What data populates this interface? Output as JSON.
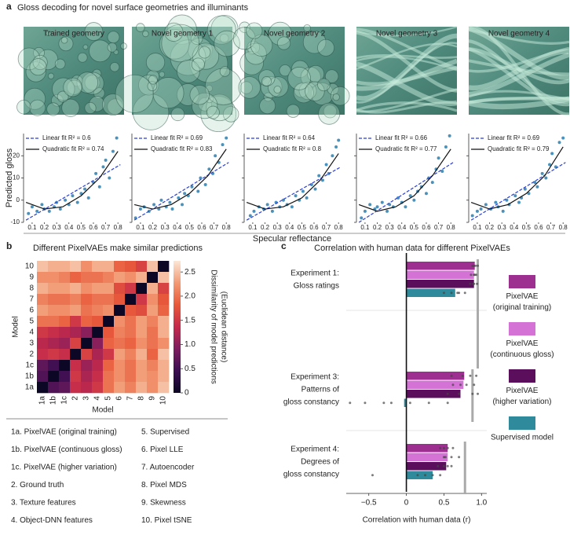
{
  "chart_data": [
    {
      "type": "scatter",
      "panel": "a",
      "title": "Gloss decoding for novel surface geometries and illuminants",
      "image_label": "Trained geometry",
      "ylabel": "Predicted gloss",
      "xlabel": "Specular reflectance",
      "ytick_labels": true,
      "xlim": [
        0.03,
        0.85
      ],
      "ylim": [
        -10,
        30
      ],
      "xticks": [
        0.1,
        0.2,
        0.3,
        0.4,
        0.5,
        0.6,
        0.7,
        0.8
      ],
      "yticks": [
        -10,
        0,
        10,
        20
      ],
      "color": "#2a7fb0",
      "x": [
        0.07,
        0.1,
        0.14,
        0.18,
        0.2,
        0.24,
        0.28,
        0.3,
        0.33,
        0.37,
        0.4,
        0.43,
        0.47,
        0.5,
        0.53,
        0.56,
        0.6,
        0.62,
        0.65,
        0.68,
        0.7,
        0.73,
        0.76,
        0.79
      ],
      "values": [
        -6,
        -3,
        -5,
        -2,
        -4,
        -5,
        -3,
        -1,
        -4,
        0,
        -2,
        2,
        -1,
        3,
        5,
        1,
        8,
        12,
        6,
        15,
        18,
        10,
        22,
        28
      ],
      "series": [
        {
          "name": "Linear fit R² = 0.6",
          "color": "#2a3fd6",
          "dashed": true,
          "x": [
            0.05,
            0.82
          ],
          "values": [
            -9,
            16
          ]
        },
        {
          "name": "Quadratic fit R² = 0.74",
          "color": "#111111",
          "dashed": false,
          "x": [
            0.05,
            0.2,
            0.35,
            0.5,
            0.65,
            0.8
          ],
          "values": [
            -1,
            -4,
            -3,
            2,
            10,
            22
          ]
        }
      ]
    },
    {
      "type": "scatter",
      "image_label": "Novel geometry 1",
      "ytick_labels": false,
      "xlim": [
        0.03,
        0.85
      ],
      "ylim": [
        -10,
        30
      ],
      "xticks": [
        0.1,
        0.2,
        0.3,
        0.4,
        0.5,
        0.6,
        0.7,
        0.8
      ],
      "yticks": [
        -10,
        0,
        10,
        20
      ],
      "color": "#2a7fb0",
      "x": [
        0.06,
        0.1,
        0.13,
        0.17,
        0.21,
        0.25,
        0.27,
        0.31,
        0.34,
        0.36,
        0.41,
        0.44,
        0.46,
        0.49,
        0.52,
        0.57,
        0.59,
        0.63,
        0.66,
        0.69,
        0.71,
        0.74,
        0.77,
        0.8
      ],
      "values": [
        -8,
        -4,
        -3,
        -5,
        -2,
        -4,
        0,
        -3,
        -1,
        -4,
        1,
        -2,
        3,
        2,
        6,
        4,
        10,
        7,
        14,
        12,
        20,
        17,
        25,
        28
      ],
      "series": [
        {
          "name": "Linear fit R² = 0.69",
          "color": "#2a3fd6",
          "dashed": true,
          "x": [
            0.05,
            0.82
          ],
          "values": [
            -9,
            17
          ]
        },
        {
          "name": "Quadratic fit R² = 0.83",
          "color": "#111111",
          "dashed": false,
          "x": [
            0.05,
            0.2,
            0.35,
            0.5,
            0.65,
            0.8
          ],
          "values": [
            -2,
            -4,
            -2,
            3,
            11,
            23
          ]
        }
      ]
    },
    {
      "type": "scatter",
      "image_label": "Novel geometry 2",
      "ytick_labels": false,
      "xlim": [
        0.03,
        0.85
      ],
      "ylim": [
        -10,
        30
      ],
      "xticks": [
        0.1,
        0.2,
        0.3,
        0.4,
        0.5,
        0.6,
        0.7,
        0.8
      ],
      "yticks": [
        -10,
        0,
        10,
        20
      ],
      "color": "#2a7fb0",
      "x": [
        0.08,
        0.11,
        0.15,
        0.19,
        0.22,
        0.26,
        0.29,
        0.32,
        0.35,
        0.38,
        0.42,
        0.45,
        0.48,
        0.51,
        0.54,
        0.58,
        0.61,
        0.64,
        0.67,
        0.7,
        0.72,
        0.75,
        0.78,
        0.8
      ],
      "values": [
        -7,
        -5,
        -3,
        -4,
        -2,
        -5,
        -1,
        -3,
        0,
        -2,
        -3,
        2,
        0,
        4,
        1,
        7,
        5,
        11,
        9,
        16,
        12,
        20,
        24,
        27
      ],
      "series": [
        {
          "name": "Linear fit R² = 0.64",
          "color": "#2a3fd6",
          "dashed": true,
          "x": [
            0.05,
            0.82
          ],
          "values": [
            -9,
            15
          ]
        },
        {
          "name": "Quadratic fit R² = 0.8",
          "color": "#111111",
          "dashed": false,
          "x": [
            0.05,
            0.2,
            0.35,
            0.5,
            0.65,
            0.8
          ],
          "values": [
            -1,
            -4,
            -3,
            1,
            9,
            21
          ]
        }
      ]
    },
    {
      "type": "scatter",
      "image_label": "Novel geometry 3",
      "ytick_labels": false,
      "xlim": [
        0.03,
        0.85
      ],
      "ylim": [
        -10,
        30
      ],
      "xticks": [
        0.1,
        0.2,
        0.3,
        0.4,
        0.5,
        0.6,
        0.7,
        0.8
      ],
      "yticks": [
        -10,
        0,
        10,
        20
      ],
      "color": "#2a7fb0",
      "x": [
        0.07,
        0.1,
        0.14,
        0.18,
        0.2,
        0.24,
        0.28,
        0.3,
        0.33,
        0.37,
        0.4,
        0.43,
        0.47,
        0.5,
        0.53,
        0.56,
        0.6,
        0.62,
        0.65,
        0.68,
        0.7,
        0.73,
        0.76,
        0.79
      ],
      "values": [
        -8,
        -5,
        -2,
        -4,
        -3,
        -1,
        -5,
        -2,
        -3,
        1,
        -1,
        -3,
        2,
        0,
        4,
        6,
        3,
        10,
        8,
        14,
        19,
        13,
        24,
        29
      ],
      "series": [
        {
          "name": "Linear fit R² = 0.66",
          "color": "#2a3fd6",
          "dashed": true,
          "x": [
            0.05,
            0.82
          ],
          "values": [
            -10,
            17
          ]
        },
        {
          "name": "Quadratic fit R² = 0.77",
          "color": "#111111",
          "dashed": false,
          "x": [
            0.05,
            0.2,
            0.35,
            0.5,
            0.65,
            0.8
          ],
          "values": [
            -2,
            -5,
            -3,
            2,
            11,
            23
          ]
        }
      ]
    },
    {
      "type": "scatter",
      "image_label": "Novel geometry 4",
      "ytick_labels": false,
      "xlim": [
        0.03,
        0.85
      ],
      "ylim": [
        -10,
        30
      ],
      "xticks": [
        0.1,
        0.2,
        0.3,
        0.4,
        0.5,
        0.6,
        0.7,
        0.8
      ],
      "yticks": [
        -10,
        0,
        10,
        20
      ],
      "color": "#2a7fb0",
      "x": [
        0.06,
        0.1,
        0.13,
        0.17,
        0.21,
        0.25,
        0.27,
        0.31,
        0.34,
        0.36,
        0.41,
        0.44,
        0.46,
        0.49,
        0.52,
        0.57,
        0.59,
        0.63,
        0.66,
        0.69,
        0.71,
        0.74,
        0.77,
        0.8
      ],
      "values": [
        -7,
        -5,
        -4,
        -2,
        -4,
        -1,
        -3,
        -5,
        0,
        -2,
        2,
        -1,
        1,
        5,
        3,
        8,
        6,
        12,
        10,
        16,
        21,
        15,
        26,
        28
      ],
      "series": [
        {
          "name": "Linear fit R² = 0.69",
          "color": "#2a3fd6",
          "dashed": true,
          "x": [
            0.05,
            0.82
          ],
          "values": [
            -9,
            17
          ]
        },
        {
          "name": "Quadratic fit R² = 0.79",
          "color": "#111111",
          "dashed": false,
          "x": [
            0.05,
            0.2,
            0.35,
            0.5,
            0.65,
            0.8
          ],
          "values": [
            -1,
            -4,
            -2,
            3,
            11,
            24
          ]
        }
      ]
    },
    {
      "type": "heatmap",
      "panel": "b",
      "title": "Different PixelVAEs make similar predictions",
      "xlabel": "Model",
      "ylabel": "Model",
      "x_categories": [
        "1a",
        "1b",
        "1c",
        "2",
        "3",
        "4",
        "5",
        "6",
        "7",
        "8",
        "9",
        "10"
      ],
      "y_categories": [
        "10",
        "9",
        "8",
        "7",
        "6",
        "5",
        "4",
        "3",
        "2",
        "1c",
        "1b",
        "1a"
      ],
      "values": [
        [
          2.5,
          2.4,
          2.4,
          2.5,
          2.2,
          2.4,
          2.4,
          1.9,
          1.8,
          1.6,
          2.5,
          0
        ],
        [
          2.2,
          2.2,
          2.1,
          1.9,
          2.0,
          2.0,
          2.1,
          2.3,
          2.2,
          2.4,
          0,
          2.5
        ],
        [
          2.4,
          2.3,
          2.3,
          2.4,
          2.2,
          2.3,
          2.3,
          1.7,
          1.5,
          0,
          2.4,
          1.6
        ],
        [
          2.1,
          2.0,
          2.0,
          2.1,
          1.9,
          2.0,
          2.0,
          1.8,
          0,
          1.5,
          2.2,
          1.8
        ],
        [
          2.3,
          2.2,
          2.2,
          2.3,
          2.0,
          2.1,
          2.2,
          0,
          1.8,
          1.7,
          2.3,
          1.9
        ],
        [
          2.0,
          2.0,
          1.9,
          1.5,
          1.9,
          1.8,
          0,
          2.2,
          2.0,
          2.3,
          2.1,
          2.4
        ],
        [
          1.5,
          1.4,
          1.3,
          1.2,
          1.0,
          0,
          1.8,
          2.1,
          2.0,
          2.3,
          2.0,
          2.4
        ],
        [
          1.3,
          1.2,
          1.1,
          1.6,
          0,
          1.0,
          1.9,
          2.0,
          1.9,
          2.2,
          2.0,
          2.2
        ],
        [
          1.4,
          1.5,
          1.4,
          0,
          1.6,
          1.2,
          1.5,
          2.3,
          2.1,
          2.4,
          1.9,
          2.5
        ],
        [
          0.7,
          0.5,
          0,
          1.4,
          1.1,
          1.3,
          1.9,
          2.2,
          2.0,
          2.3,
          2.1,
          2.4
        ],
        [
          0.6,
          0,
          0.5,
          1.5,
          1.2,
          1.4,
          2.0,
          2.2,
          2.0,
          2.3,
          2.2,
          2.4
        ],
        [
          0,
          0.6,
          0.7,
          1.4,
          1.3,
          1.5,
          2.0,
          2.3,
          2.1,
          2.4,
          2.2,
          2.5
        ]
      ],
      "clim": [
        0,
        2.73
      ],
      "colorbar_ticks": [
        0,
        0.5,
        {
          "value": 1,
          "label": "1.0"
        },
        1.5,
        {
          "value": 2,
          "label": "2.0"
        },
        2.5
      ],
      "colorbar_label": [
        "Dissimilarity of model predictions",
        "(Euclidean distance)"
      ],
      "colors": [
        "#0b0724",
        "#3a0f52",
        "#7c1d5f",
        "#c42a4b",
        "#e8593a",
        "#f29a74",
        "#fbe7d6"
      ],
      "model_key": [
        "1a. PixelVAE (original training)",
        "1b. PixelVAE (continuous gloss)",
        "1c. PixelVAE (higher variation)",
        "2. Ground truth",
        "3. Texture features",
        "4. Object-DNN features",
        "5. Supervised",
        "6. Pixel LLE",
        "7. Autoencoder",
        "8. Pixel MDS",
        "9. Skewness",
        "10. Pixel tSNE"
      ]
    },
    {
      "type": "hbar",
      "panel": "c",
      "title": "Correlation with human data for different PixelVAEs",
      "categories": [
        [
          "Experiment 1:",
          "Gloss ratings"
        ],
        [
          "Experiment 3:",
          "Patterns of",
          "gloss constancy"
        ],
        [
          "Experiment 4:",
          "Degrees of",
          "gloss constancy"
        ]
      ],
      "xlabel": "Correlation with human data (r)",
      "xlim": [
        -0.8,
        1.07
      ],
      "xticks": [
        {
          "value": -0.5,
          "label": "−0.5"
        },
        0,
        0.5,
        {
          "value": 1,
          "label": "1.0"
        }
      ],
      "ceiling": [
        0.95,
        0.88,
        0.78
      ],
      "series": [
        {
          "name": "PixelVAE (original training)",
          "color": "#9c2f90",
          "values": [
            0.91,
            0.77,
            0.55
          ],
          "points": [
            [
              0.88,
              0.92,
              0.95,
              0.9
            ],
            [
              0.6,
              0.75,
              0.85,
              0.93
            ],
            [
              0.45,
              0.55,
              0.62,
              0.5
            ]
          ]
        },
        {
          "name": "PixelVAE (continuous gloss)",
          "color": "#d472d6",
          "values": [
            0.9,
            0.76,
            0.55
          ],
          "points": [
            [
              0.86,
              0.9,
              0.93,
              0.91
            ],
            [
              0.62,
              0.8,
              0.9,
              0.72
            ],
            [
              0.5,
              0.6,
              0.7,
              0.52
            ]
          ]
        },
        {
          "name": "PixelVAE (higher variation)",
          "color": "#5a0e5c",
          "values": [
            0.9,
            0.72,
            0.53
          ],
          "points": [
            [
              0.85,
              0.9,
              0.94,
              0.89
            ],
            [
              0.55,
              0.7,
              0.88,
              0.95
            ],
            [
              0.42,
              0.55,
              0.6,
              0.5
            ]
          ]
        },
        {
          "name": "Supervised model",
          "color": "#2f8b9b",
          "values": [
            0.65,
            -0.03,
            0.35
          ],
          "points": [
            [
              0.5,
              0.6,
              0.7,
              0.78,
              0.68
            ],
            [
              -0.75,
              -0.55,
              -0.3,
              -0.2,
              0.05,
              0.3,
              0.55
            ],
            [
              0.15,
              0.25,
              0.35,
              0.45,
              -0.45
            ]
          ]
        }
      ]
    }
  ]
}
